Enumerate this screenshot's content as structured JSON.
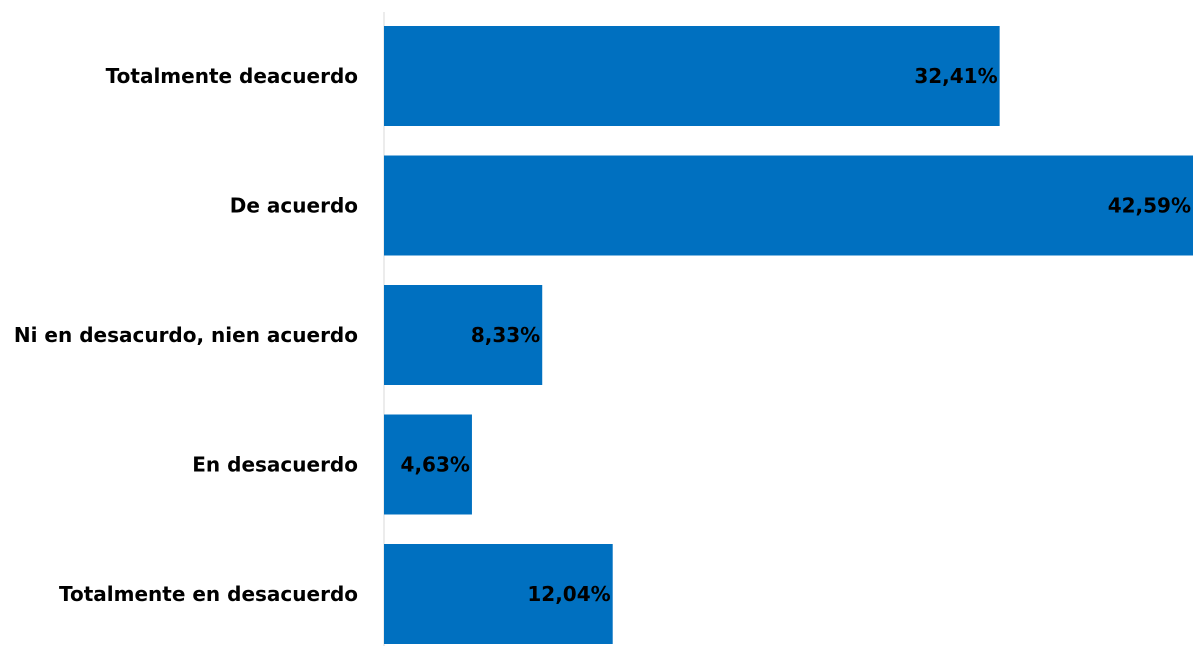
{
  "chart_data": {
    "type": "bar",
    "orientation": "horizontal",
    "categories": [
      "Totalmente deacuerdo",
      "De acuerdo",
      "Ni en desacurdo, nien acuerdo",
      "En desacuerdo",
      "Totalmente en desacuerdo"
    ],
    "values": [
      32.41,
      42.59,
      8.33,
      4.63,
      12.04
    ],
    "data_labels": [
      "32,41%",
      "42,59%",
      "8,33%",
      "4,63%",
      "12,04%"
    ],
    "bar_color": "#0070C0",
    "title": "",
    "xlabel": "",
    "ylabel": "",
    "xlim": [
      0,
      42.59
    ],
    "grid": false,
    "legend": "none",
    "axis_line_color": "#D9D9D9"
  }
}
